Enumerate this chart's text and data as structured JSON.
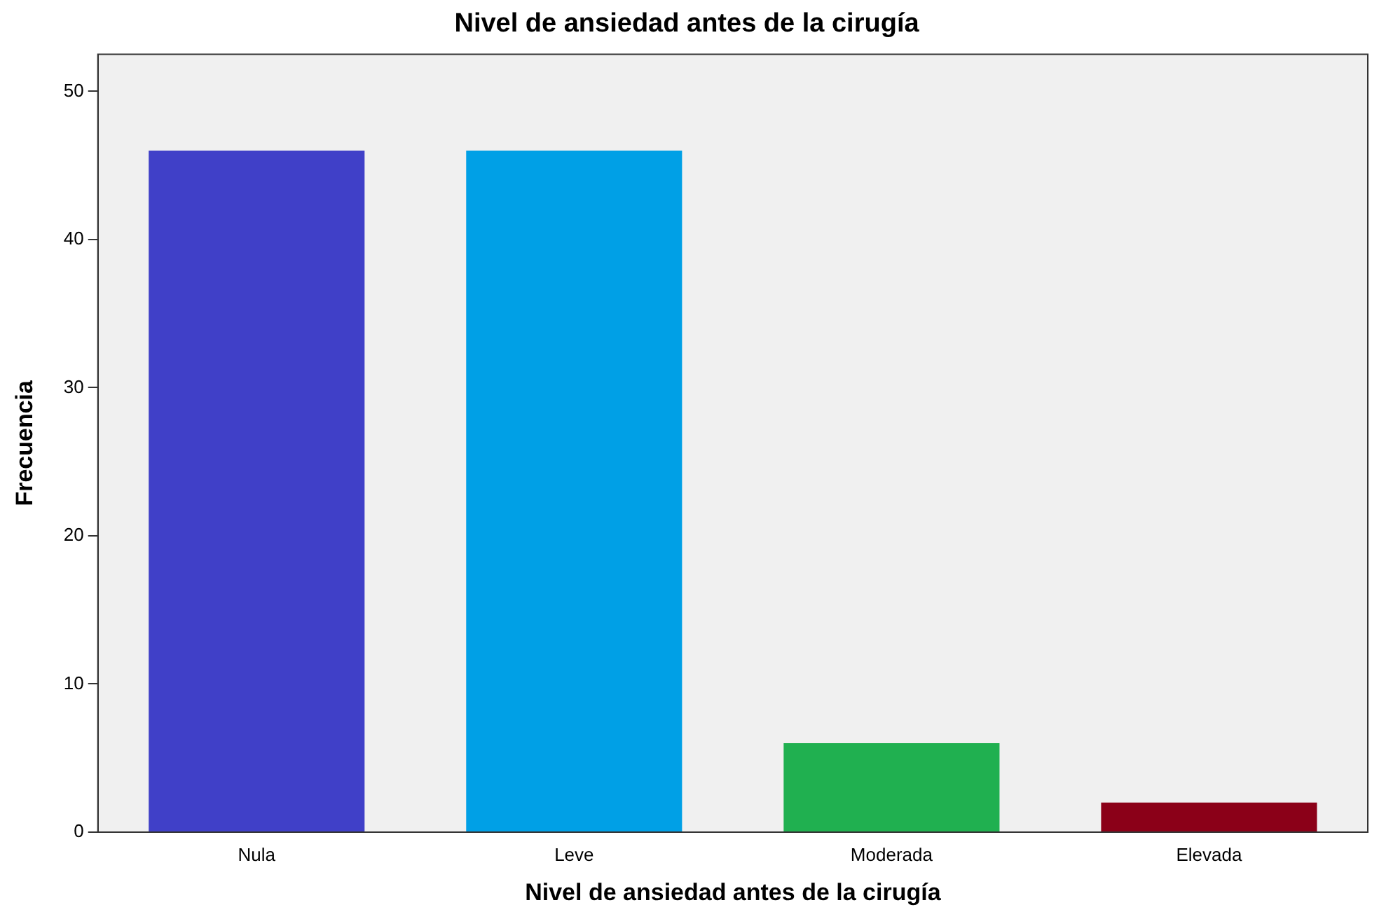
{
  "chart_data": {
    "type": "bar",
    "title": "Nivel de ansiedad antes de la cirugía",
    "xlabel": "Nivel de ansiedad antes de la cirugía",
    "ylabel": "Frecuencia",
    "categories": [
      "Nula",
      "Leve",
      "Moderada",
      "Elevada"
    ],
    "values": [
      46,
      46,
      6,
      2
    ],
    "colors": [
      "#4040c8",
      "#00a0e6",
      "#20b050",
      "#8b0018"
    ],
    "ylim": [
      0,
      52.5
    ],
    "yticks": [
      0,
      10,
      20,
      30,
      40,
      50
    ],
    "grid": false,
    "legend": false
  }
}
